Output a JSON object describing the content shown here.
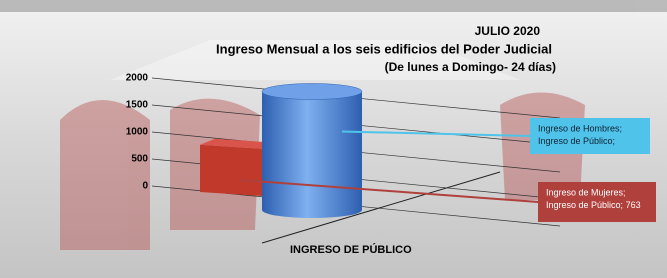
{
  "chart_data": {
    "type": "bar3d",
    "title": "JULIO 2020",
    "subtitle": "Ingreso Mensual a los seis edificios del Poder Judicial",
    "subtitle2": "(De lunes a Domingo- 24 días)",
    "xlabel": "INGRESO DE PÚBLICO",
    "category_label": "Ingreso de Público;",
    "ylim": [
      0,
      2000
    ],
    "yticks": [
      0,
      500,
      1000,
      1500,
      2000
    ],
    "series": [
      {
        "name": "Ingreso  de Hombres;",
        "color": "#4a86d8",
        "values": [
          1750
        ]
      },
      {
        "name": "Ingreso de Mujeres;",
        "color": "#c0392b",
        "values": [
          763
        ],
        "value_labels": [
          "763"
        ]
      }
    ]
  }
}
